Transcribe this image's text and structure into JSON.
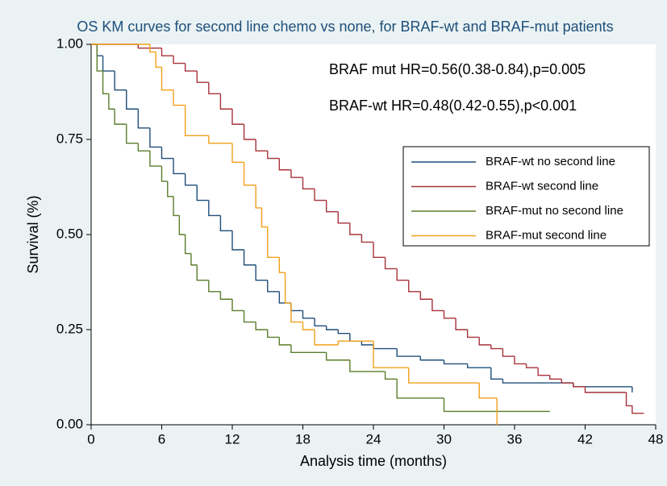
{
  "chart_data": {
    "type": "step",
    "title": "OS KM curves for second line chemo vs none, for BRAF-wt and BRAF-mut patients",
    "x_label": "Analysis time (months)",
    "y_label": "Survival (%)",
    "annotations": [
      "BRAF mut HR=0.56(0.38-0.84),p=0.005",
      "BRAF-wt HR=0.48(0.42-0.55),p<0.001"
    ],
    "xlim": [
      0,
      48
    ],
    "xticks": [
      0,
      6,
      12,
      18,
      24,
      30,
      36,
      42,
      48
    ],
    "ylim": [
      0,
      1
    ],
    "yticks": [
      {
        "value": 0,
        "label": "0.00"
      },
      {
        "value": 0.25,
        "label": "0.25"
      },
      {
        "value": 0.5,
        "label": "0.50"
      },
      {
        "value": 0.75,
        "label": "0.75"
      },
      {
        "value": 1,
        "label": "1.00"
      }
    ],
    "legend_position": "right",
    "series": [
      {
        "name": "BRAF-wt no second line",
        "color": "#1f4e79",
        "x": [
          0,
          0.5,
          1,
          2,
          3,
          4,
          5,
          6,
          7,
          8,
          9,
          10,
          11,
          12,
          13,
          14,
          15,
          16,
          17,
          18,
          19,
          20,
          21,
          22,
          23,
          24,
          26,
          28,
          30,
          32,
          34,
          35,
          39,
          41,
          46
        ],
        "values": [
          1,
          0.97,
          0.93,
          0.88,
          0.83,
          0.78,
          0.73,
          0.7,
          0.66,
          0.63,
          0.59,
          0.55,
          0.51,
          0.46,
          0.42,
          0.38,
          0.35,
          0.32,
          0.3,
          0.28,
          0.26,
          0.25,
          0.24,
          0.22,
          0.21,
          0.2,
          0.18,
          0.17,
          0.16,
          0.15,
          0.12,
          0.11,
          0.11,
          0.1,
          0.085
        ]
      },
      {
        "name": "BRAF-wt second line",
        "color": "#a8323a",
        "x": [
          0,
          4,
          6,
          7,
          8,
          9,
          10,
          11,
          12,
          13,
          14,
          15,
          16,
          17,
          18,
          19,
          20,
          21,
          22,
          23,
          24,
          25,
          26,
          27,
          28,
          29,
          30,
          31,
          32,
          33,
          34,
          35,
          36,
          37,
          38,
          39,
          40,
          41,
          42,
          45.5,
          46,
          47
        ],
        "values": [
          1,
          0.99,
          0.97,
          0.95,
          0.93,
          0.9,
          0.87,
          0.83,
          0.79,
          0.75,
          0.72,
          0.7,
          0.67,
          0.65,
          0.62,
          0.59,
          0.56,
          0.53,
          0.5,
          0.48,
          0.44,
          0.41,
          0.38,
          0.35,
          0.33,
          0.3,
          0.28,
          0.25,
          0.23,
          0.21,
          0.2,
          0.18,
          0.16,
          0.15,
          0.13,
          0.12,
          0.11,
          0.1,
          0.085,
          0.05,
          0.03,
          0.03
        ]
      },
      {
        "name": "BRAF-mut no second line",
        "color": "#5a7d2a",
        "x": [
          0,
          0.5,
          1,
          1.5,
          2,
          3,
          4,
          5,
          6,
          6.5,
          7,
          7.5,
          8,
          8.5,
          9,
          10,
          11,
          12,
          13,
          14,
          15,
          16,
          17,
          20,
          22,
          25,
          26,
          30,
          39
        ],
        "values": [
          1,
          0.93,
          0.87,
          0.83,
          0.79,
          0.74,
          0.72,
          0.68,
          0.64,
          0.6,
          0.55,
          0.5,
          0.45,
          0.42,
          0.38,
          0.35,
          0.33,
          0.3,
          0.27,
          0.25,
          0.23,
          0.21,
          0.19,
          0.17,
          0.14,
          0.12,
          0.07,
          0.035,
          0.035
        ]
      },
      {
        "name": "BRAF-mut second line",
        "color": "#f2a01a",
        "x": [
          0,
          5,
          5.5,
          6,
          7,
          8,
          10,
          12,
          13,
          14,
          14.5,
          15,
          16,
          16.5,
          17,
          18,
          19,
          21,
          24,
          27,
          33,
          34.5
        ],
        "values": [
          1,
          0.98,
          0.94,
          0.88,
          0.84,
          0.76,
          0.74,
          0.69,
          0.63,
          0.57,
          0.52,
          0.44,
          0.4,
          0.32,
          0.27,
          0.25,
          0.21,
          0.22,
          0.15,
          0.11,
          0.07,
          0
        ]
      }
    ]
  }
}
